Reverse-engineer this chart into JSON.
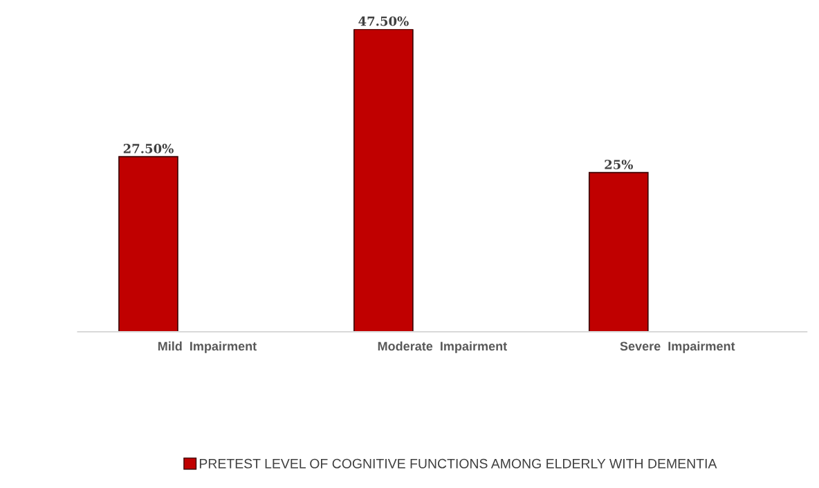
{
  "chart_data": {
    "type": "bar",
    "categories": [
      "Mild  Impairment",
      "Moderate  Impairment",
      "Severe  Impairment"
    ],
    "series": [
      {
        "name": "PRETEST LEVEL OF COGNITIVE FUNCTIONS AMONG ELDERLY WITH DEMENTIA",
        "color": "#c00000",
        "values": [
          27.5,
          47.5,
          25
        ],
        "value_labels": [
          "27.50%",
          "47.50%",
          "25%"
        ]
      }
    ],
    "legend": "bottom",
    "grid": false
  }
}
